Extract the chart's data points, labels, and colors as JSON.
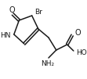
{
  "bg_color": "#ffffff",
  "line_color": "#1a1a1a",
  "text_color": "#1a1a1a",
  "figsize": [
    1.11,
    1.01
  ],
  "dpi": 100,
  "atoms": {
    "O_carbonyl": "O",
    "HN": "HN",
    "Br": "Br",
    "NH2": "NH₂",
    "COOH_O": "O",
    "COOH_OH": "HO"
  },
  "lw": 1.1
}
